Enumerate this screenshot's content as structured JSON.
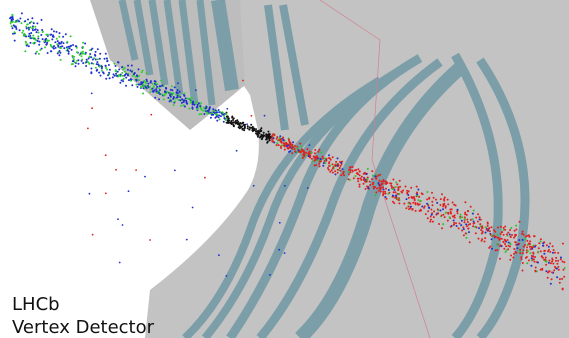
{
  "caption": {
    "line1": "LHCb",
    "line2": "Vertex Detector"
  }
}
